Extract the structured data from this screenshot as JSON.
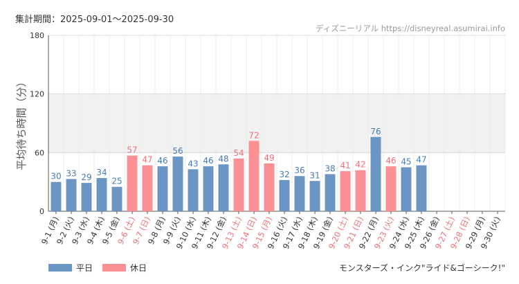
{
  "header": {
    "period_label": "集計期間：2025-09-01～2025-09-30",
    "source": "ディズニーリアル https://disneyreal.asumirai.info"
  },
  "legend": {
    "weekday": "平日",
    "holiday": "休日"
  },
  "footer": {
    "attraction": "モンスターズ・インク\"ライド&ゴーシーク!\""
  },
  "colors": {
    "weekday": "#6b96c4",
    "holiday": "#fa9093",
    "weekday_text": "#4a7bb0",
    "holiday_text": "#e8747a",
    "band": "#f1f1f1",
    "grid": "#d8d8d8"
  },
  "chart_data": {
    "type": "bar",
    "ylabel": "平均待ち時間（分）",
    "ylim": [
      0,
      180
    ],
    "yticks": [
      0,
      60,
      120,
      180
    ],
    "shaded_band": [
      60,
      120
    ],
    "grid": true,
    "legend_placement": "bottom-left",
    "categories": [
      "9-1 (月)",
      "9-2 (火)",
      "9-3 (水)",
      "9-4 (木)",
      "9-5 (金)",
      "9-6 (土)",
      "9-7 (日)",
      "9-8 (月)",
      "9-9 (火)",
      "9-10 (水)",
      "9-11 (木)",
      "9-12 (金)",
      "9-13 (土)",
      "9-14 (日)",
      "9-15 (月)",
      "9-16 (火)",
      "9-17 (水)",
      "9-18 (木)",
      "9-19 (金)",
      "9-20 (土)",
      "9-21 (日)",
      "9-22 (月)",
      "9-23 (火)",
      "9-24 (水)",
      "9-25 (木)",
      "9-26 (金)",
      "9-27 (土)",
      "9-28 (日)",
      "9-29 (月)",
      "9-30 (火)"
    ],
    "values": [
      30,
      33,
      29,
      34,
      25,
      57,
      47,
      46,
      56,
      43,
      46,
      48,
      54,
      72,
      49,
      32,
      36,
      31,
      38,
      41,
      42,
      76,
      46,
      45,
      47,
      null,
      null,
      null,
      null,
      null
    ],
    "day_type": [
      "weekday",
      "weekday",
      "weekday",
      "weekday",
      "weekday",
      "holiday",
      "holiday",
      "weekday",
      "weekday",
      "weekday",
      "weekday",
      "weekday",
      "holiday",
      "holiday",
      "holiday",
      "weekday",
      "weekday",
      "weekday",
      "weekday",
      "holiday",
      "holiday",
      "weekday",
      "holiday",
      "weekday",
      "weekday",
      "weekday",
      "holiday",
      "holiday",
      "weekday",
      "weekday"
    ]
  }
}
